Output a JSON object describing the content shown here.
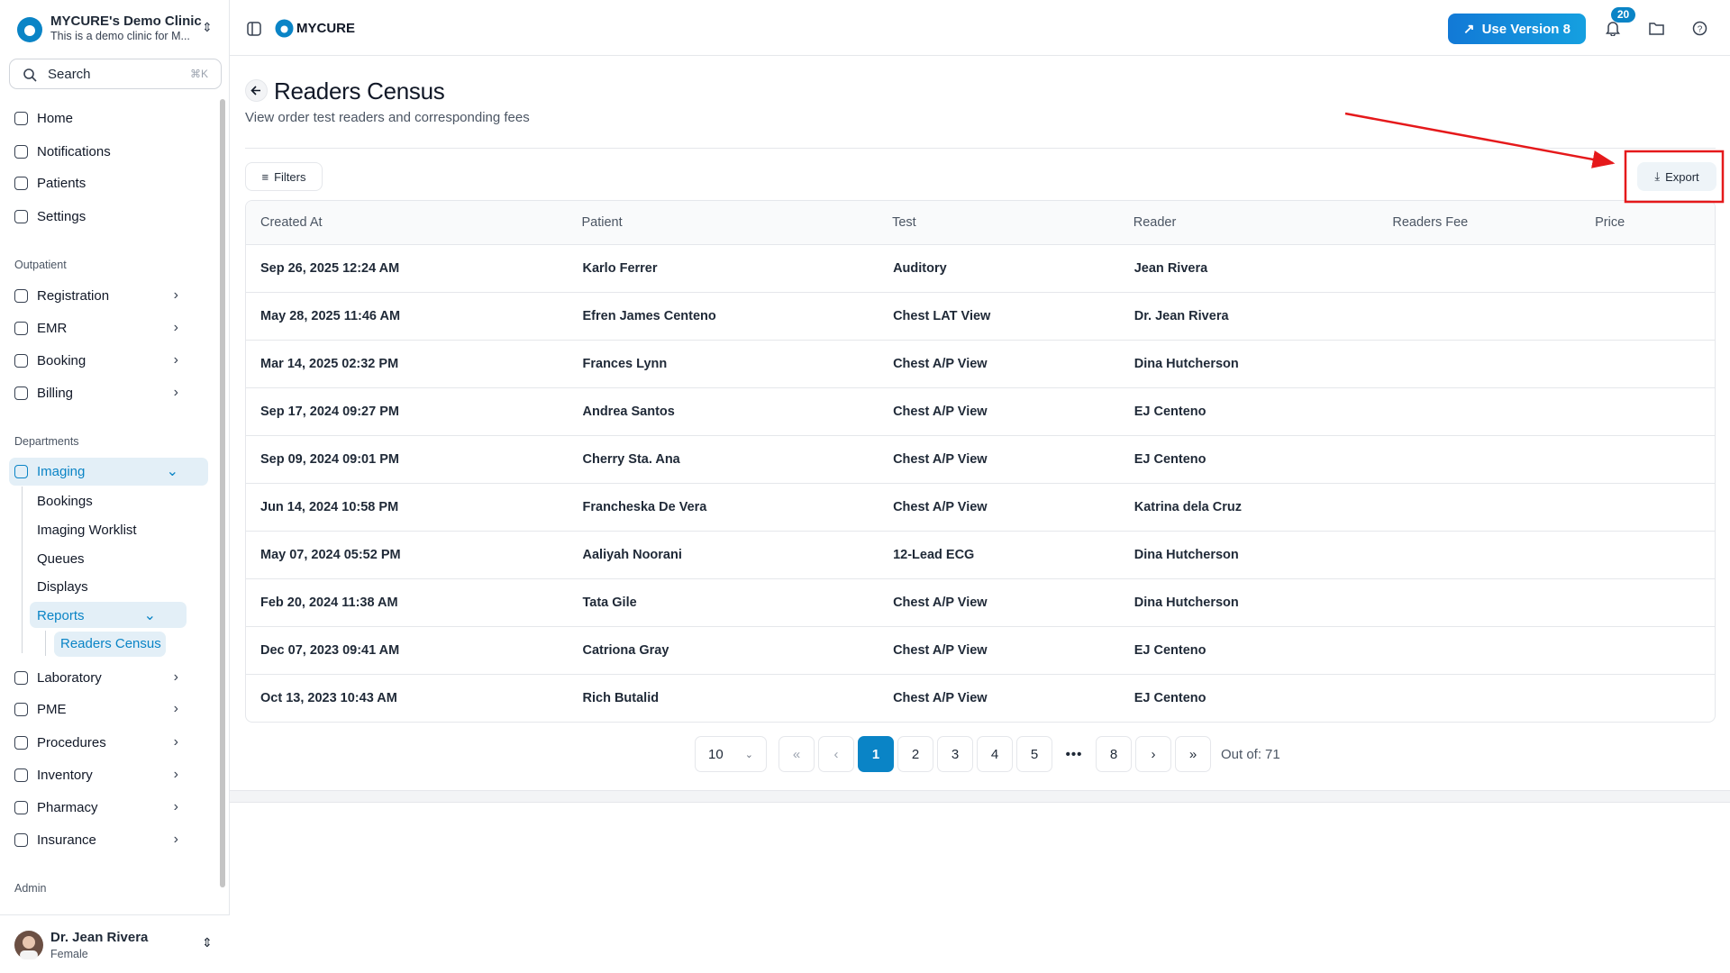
{
  "sidebar": {
    "clinic_name": "MYCURE's Demo Clinic",
    "clinic_subtitle": "This is a demo clinic for M...",
    "search_placeholder": "Search",
    "search_shortcut": "⌘K",
    "main_nav": [
      "Home",
      "Notifications",
      "Patients",
      "Settings"
    ],
    "outpatient": {
      "label": "Outpatient",
      "items": [
        "Registration",
        "EMR",
        "Booking",
        "Billing"
      ]
    },
    "departments": {
      "label": "Departments",
      "imaging": {
        "label": "Imaging",
        "items": [
          "Bookings",
          "Imaging Worklist",
          "Queues",
          "Displays"
        ],
        "reports": {
          "label": "Reports",
          "items": [
            "Readers Census"
          ]
        }
      },
      "items": [
        "Laboratory",
        "PME",
        "Procedures",
        "Inventory",
        "Pharmacy",
        "Insurance"
      ]
    },
    "admin": {
      "label": "Admin"
    },
    "user": {
      "name": "Dr. Jean Rivera",
      "role": "Female"
    }
  },
  "header": {
    "brand": "MYCURE",
    "version_button": "Use Version 8",
    "notification_count": 20
  },
  "page": {
    "title": "Readers Census",
    "subtitle": "View order test readers and corresponding fees",
    "filters_button": "Filters",
    "export_button": "Export"
  },
  "table": {
    "columns": [
      "Created At",
      "Patient",
      "Test",
      "Reader",
      "Readers Fee",
      "Price"
    ],
    "rows": [
      {
        "created_at": "Sep 26, 2025 12:24 AM",
        "patient": "Karlo Ferrer",
        "test": "Auditory",
        "reader": "Jean Rivera"
      },
      {
        "created_at": "May 28, 2025 11:46 AM",
        "patient": "Efren James Centeno",
        "test": "Chest LAT View",
        "reader": "Dr. Jean Rivera"
      },
      {
        "created_at": "Mar 14, 2025 02:32 PM",
        "patient": "Frances Lynn",
        "test": "Chest A/P View",
        "reader": "Dina Hutcherson"
      },
      {
        "created_at": "Sep 17, 2024 09:27 PM",
        "patient": "Andrea Santos",
        "test": "Chest A/P View",
        "reader": "EJ Centeno"
      },
      {
        "created_at": "Sep 09, 2024 09:01 PM",
        "patient": "Cherry Sta. Ana",
        "test": "Chest A/P View",
        "reader": "EJ Centeno"
      },
      {
        "created_at": "Jun 14, 2024 10:58 PM",
        "patient": "Francheska De Vera",
        "test": "Chest A/P View",
        "reader": "Katrina dela Cruz"
      },
      {
        "created_at": "May 07, 2024 05:52 PM",
        "patient": "Aaliyah Noorani",
        "test": "12-Lead ECG",
        "reader": "Dina Hutcherson"
      },
      {
        "created_at": "Feb 20, 2024 11:38 AM",
        "patient": "Tata Gile",
        "test": "Chest A/P View",
        "reader": "Dina Hutcherson"
      },
      {
        "created_at": "Dec 07, 2023 09:41 AM",
        "patient": "Catriona Gray",
        "test": "Chest A/P View",
        "reader": "EJ Centeno"
      },
      {
        "created_at": "Oct 13, 2023 10:43 AM",
        "patient": "Rich Butalid",
        "test": "Chest A/P View",
        "reader": "EJ Centeno"
      }
    ]
  },
  "pagination": {
    "page_size": 10,
    "pages": [
      1,
      2,
      3,
      4,
      5,
      8
    ],
    "current_page": 1,
    "out_of_label": "Out of:",
    "total": 71
  }
}
